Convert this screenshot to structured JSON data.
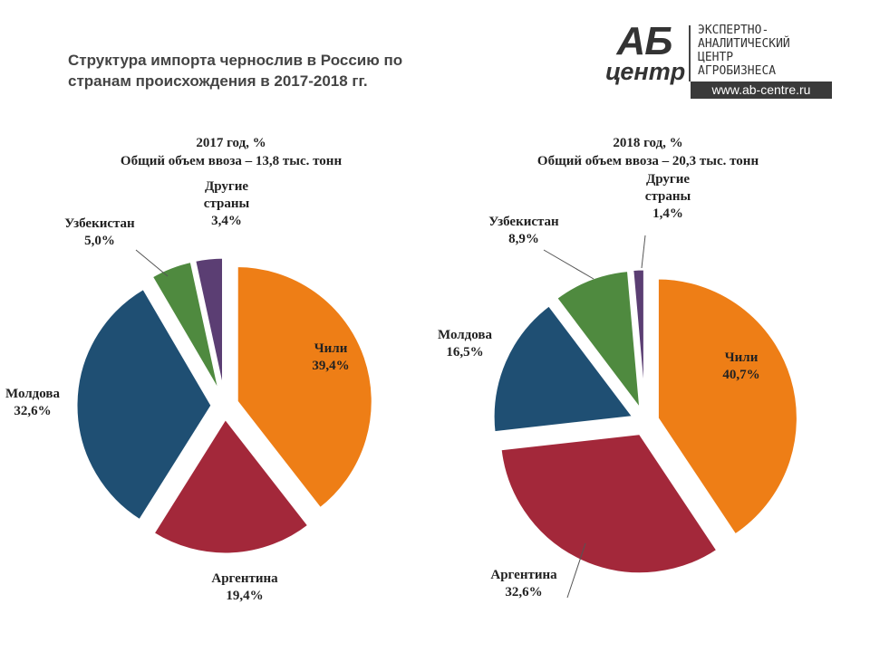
{
  "title": "Структура импорта чернослив в Россию по странам происхождения в 2017-2018 гг.",
  "logo": {
    "mark_top": "АБ",
    "mark_bottom": "центр",
    "lines": [
      "ЭКСПЕРТНО-",
      "АНАЛИТИЧЕСКИЙ",
      "ЦЕНТР",
      "АГРОБИЗНЕСА"
    ],
    "url": "www.ab-centre.ru"
  },
  "chart_data": [
    {
      "type": "pie",
      "title": "2017 год, %",
      "subtitle": "Общий объем ввоза – 13,8 тыс. тонн",
      "slices": [
        {
          "name": "Чили",
          "value": 39.4,
          "label": "39,4%",
          "color": "#ee7e16"
        },
        {
          "name": "Аргентина",
          "value": 19.4,
          "label": "19,4%",
          "color": "#a3283a"
        },
        {
          "name": "Молдова",
          "value": 32.6,
          "label": "32,6%",
          "color": "#1f4f73"
        },
        {
          "name": "Узбекистан",
          "value": 5.0,
          "label": "5,0%",
          "color": "#4f8a3f"
        },
        {
          "name": "Другие страны",
          "value": 3.4,
          "label": "3,4%",
          "color": "#5b3e73"
        }
      ]
    },
    {
      "type": "pie",
      "title": "2018 год, %",
      "subtitle": "Общий объем ввоза – 20,3 тыс. тонн",
      "slices": [
        {
          "name": "Чили",
          "value": 40.7,
          "label": "40,7%",
          "color": "#ee7e16"
        },
        {
          "name": "Аргентина",
          "value": 32.6,
          "label": "32,6%",
          "color": "#a3283a"
        },
        {
          "name": "Молдова",
          "value": 16.5,
          "label": "16,5%",
          "color": "#1f4f73"
        },
        {
          "name": "Узбекистан",
          "value": 8.9,
          "label": "8,9%",
          "color": "#4f8a3f"
        },
        {
          "name": "Другие страны",
          "value": 1.4,
          "label": "1,4%",
          "color": "#5b3e73"
        }
      ]
    }
  ]
}
